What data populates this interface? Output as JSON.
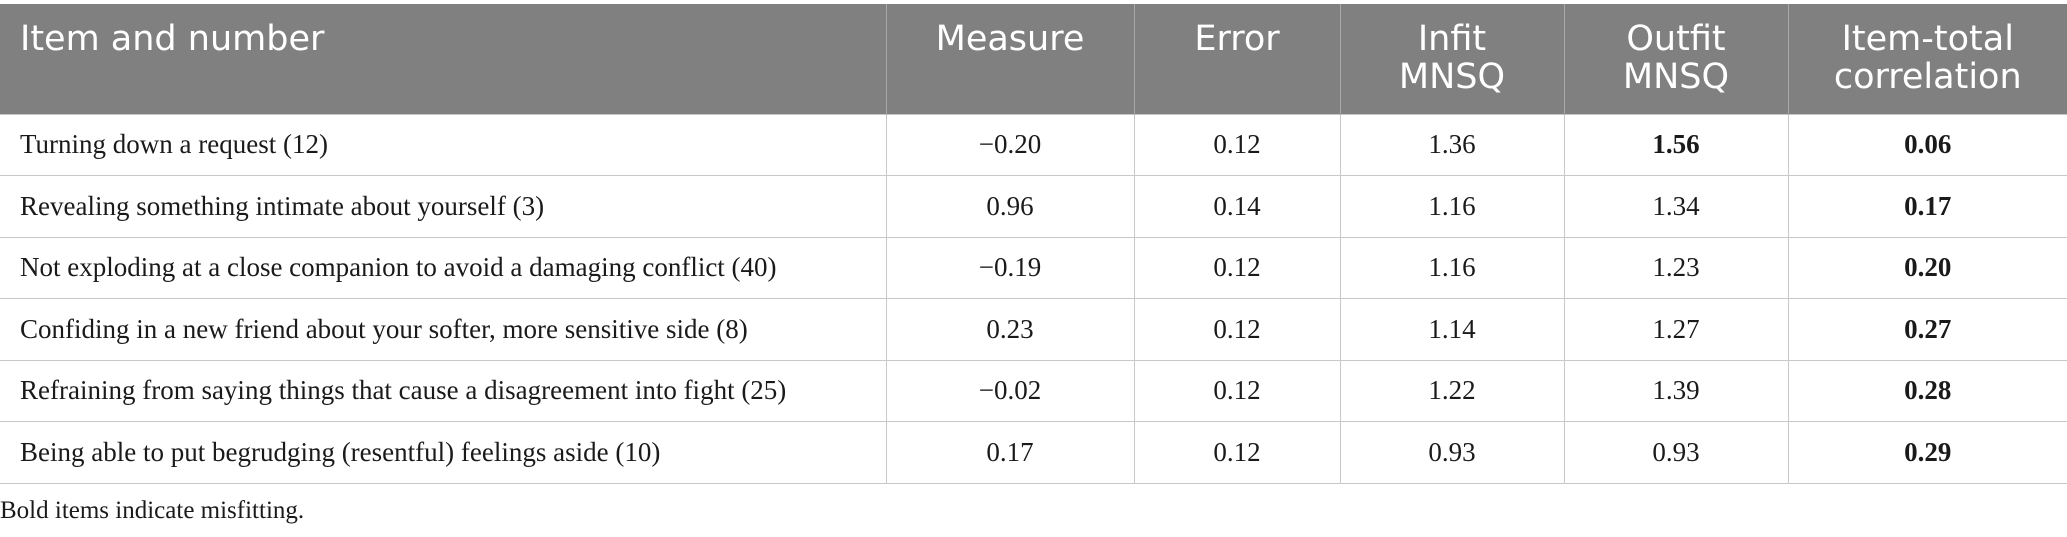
{
  "table": {
    "headers": [
      "Item and number",
      "Measure",
      "Error",
      "Infit MNSQ",
      "Outfit MNSQ",
      "Item-total correlation"
    ],
    "rows": [
      {
        "cells": [
          "Turning down a request (12)",
          "−0.20",
          "0.12",
          "1.36",
          "1.56",
          "0.06"
        ],
        "bold": [
          false,
          false,
          false,
          false,
          true,
          true
        ]
      },
      {
        "cells": [
          "Revealing something intimate about yourself (3)",
          "0.96",
          "0.14",
          "1.16",
          "1.34",
          "0.17"
        ],
        "bold": [
          false,
          false,
          false,
          false,
          false,
          true
        ]
      },
      {
        "cells": [
          "Not exploding at a close companion to avoid a damaging conflict (40)",
          "−0.19",
          "0.12",
          "1.16",
          "1.23",
          "0.20"
        ],
        "bold": [
          false,
          false,
          false,
          false,
          false,
          true
        ]
      },
      {
        "cells": [
          "Confiding in a new friend about your softer, more sensitive side (8)",
          "0.23",
          "0.12",
          "1.14",
          "1.27",
          "0.27"
        ],
        "bold": [
          false,
          false,
          false,
          false,
          false,
          true
        ]
      },
      {
        "cells": [
          "Refraining from saying things that cause a disagreement into fight (25)",
          "−0.02",
          "0.12",
          "1.22",
          "1.39",
          "0.28"
        ],
        "bold": [
          false,
          false,
          false,
          false,
          false,
          true
        ]
      },
      {
        "cells": [
          "Being able to put begrudging (resentful) feelings aside (10)",
          "0.17",
          "0.12",
          "0.93",
          "0.93",
          "0.29"
        ],
        "bold": [
          false,
          false,
          false,
          false,
          false,
          true
        ]
      }
    ]
  },
  "footnote": "Bold items indicate misfitting."
}
